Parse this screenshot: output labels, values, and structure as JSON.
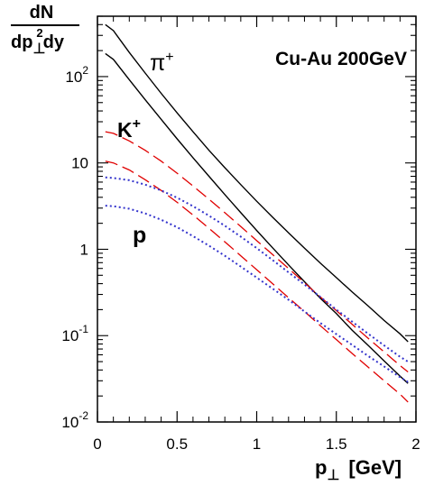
{
  "chart_data": {
    "type": "line",
    "title": "Cu-Au 200GeV",
    "ylabel_top": "dN",
    "ylabel_bottom_pre": "dp",
    "ylabel_bottom_sub": "⊥",
    "ylabel_bottom_sup": "2",
    "ylabel_bottom_post": "dy",
    "xlabel_main": "p",
    "xlabel_sub": "⊥",
    "xlabel_unit": "[GeV]",
    "xlim": [
      0,
      2
    ],
    "ylim": [
      0.01,
      500
    ],
    "yscale": "log",
    "x_ticks": [
      "0",
      "0.5",
      "1",
      "1.5",
      "2"
    ],
    "y_ticks": [
      {
        "value": 0.01,
        "base": "10",
        "exp": "-2"
      },
      {
        "value": 0.1,
        "base": "10",
        "exp": "-1"
      },
      {
        "value": 1,
        "base": "1",
        "exp": ""
      },
      {
        "value": 10,
        "base": "10",
        "exp": ""
      },
      {
        "value": 100,
        "base": "10",
        "exp": "2"
      }
    ],
    "annotations": [
      {
        "base": "π",
        "sup": "+"
      },
      {
        "base": "K",
        "sup": "+"
      },
      {
        "base": "p",
        "sup": ""
      }
    ],
    "series": [
      {
        "color": "#000000",
        "style": "solid",
        "x": [
          0.05,
          0.1,
          0.2,
          0.3,
          0.4,
          0.5,
          0.6,
          0.7,
          0.8,
          0.9,
          1.0,
          1.1,
          1.2,
          1.3,
          1.4,
          1.5,
          1.6,
          1.7,
          1.8,
          1.9,
          1.95
        ],
        "y": [
          400,
          340,
          190,
          110,
          64,
          38,
          23,
          14,
          8.8,
          5.6,
          3.6,
          2.35,
          1.55,
          1.03,
          0.69,
          0.47,
          0.32,
          0.22,
          0.15,
          0.105,
          0.085
        ]
      },
      {
        "color": "#000000",
        "style": "solid",
        "x": [
          0.05,
          0.1,
          0.2,
          0.3,
          0.4,
          0.5,
          0.6,
          0.7,
          0.8,
          0.9,
          1.0,
          1.1,
          1.2,
          1.3,
          1.4,
          1.5,
          1.6,
          1.7,
          1.8,
          1.9,
          1.95
        ],
        "y": [
          185,
          158,
          92,
          54,
          32,
          19,
          11.5,
          7.0,
          4.3,
          2.65,
          1.65,
          1.04,
          0.66,
          0.42,
          0.27,
          0.18,
          0.115,
          0.077,
          0.051,
          0.034,
          0.028
        ]
      },
      {
        "color": "#e00000",
        "style": "dashed",
        "x": [
          0.05,
          0.1,
          0.2,
          0.3,
          0.4,
          0.5,
          0.6,
          0.7,
          0.8,
          0.9,
          1.0,
          1.1,
          1.2,
          1.3,
          1.4,
          1.5,
          1.6,
          1.7,
          1.8,
          1.9,
          1.95
        ],
        "y": [
          23,
          22,
          18,
          14,
          10.5,
          7.6,
          5.4,
          3.8,
          2.65,
          1.83,
          1.26,
          0.87,
          0.6,
          0.41,
          0.28,
          0.195,
          0.135,
          0.093,
          0.065,
          0.045,
          0.038
        ]
      },
      {
        "color": "#e00000",
        "style": "dashed",
        "x": [
          0.05,
          0.1,
          0.2,
          0.3,
          0.4,
          0.5,
          0.6,
          0.7,
          0.8,
          0.9,
          1.0,
          1.1,
          1.2,
          1.3,
          1.4,
          1.5,
          1.6,
          1.7,
          1.8,
          1.9,
          1.95
        ],
        "y": [
          10.5,
          10.0,
          8.3,
          6.4,
          4.8,
          3.5,
          2.5,
          1.75,
          1.22,
          0.84,
          0.58,
          0.4,
          0.275,
          0.19,
          0.13,
          0.09,
          0.062,
          0.043,
          0.03,
          0.021,
          0.017
        ]
      },
      {
        "color": "#3333cc",
        "style": "dotted",
        "x": [
          0.05,
          0.1,
          0.2,
          0.3,
          0.4,
          0.5,
          0.6,
          0.7,
          0.8,
          0.9,
          1.0,
          1.1,
          1.2,
          1.3,
          1.4,
          1.5,
          1.6,
          1.7,
          1.8,
          1.9,
          1.95
        ],
        "y": [
          6.8,
          6.7,
          6.3,
          5.6,
          4.8,
          3.95,
          3.15,
          2.45,
          1.87,
          1.4,
          1.03,
          0.75,
          0.54,
          0.39,
          0.28,
          0.2,
          0.145,
          0.105,
          0.077,
          0.057,
          0.05
        ]
      },
      {
        "color": "#3333cc",
        "style": "dotted",
        "x": [
          0.05,
          0.1,
          0.2,
          0.3,
          0.4,
          0.5,
          0.6,
          0.7,
          0.8,
          0.9,
          1.0,
          1.1,
          1.2,
          1.3,
          1.4,
          1.5,
          1.6,
          1.7,
          1.8,
          1.9,
          1.95
        ],
        "y": [
          3.2,
          3.15,
          2.95,
          2.6,
          2.2,
          1.8,
          1.42,
          1.1,
          0.84,
          0.63,
          0.47,
          0.35,
          0.26,
          0.19,
          0.14,
          0.104,
          0.078,
          0.058,
          0.044,
          0.033,
          0.029
        ]
      }
    ]
  }
}
